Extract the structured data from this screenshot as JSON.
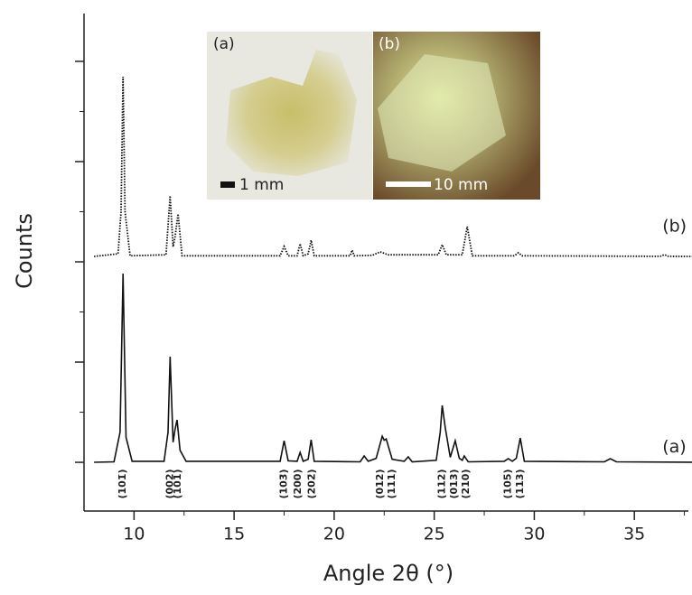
{
  "chart_data": {
    "type": "line",
    "x_label": "Angle 2θ (°)",
    "y_label": "Counts",
    "xlim": [
      7.5,
      37.7
    ],
    "xticks": [
      10,
      15,
      20,
      25,
      30,
      35
    ],
    "xminorticks": [
      12.5,
      17.5,
      22.5,
      27.5,
      32.5,
      37.5
    ],
    "ylim": [
      -486,
      4477
    ],
    "yticks": [
      0,
      1000,
      2000,
      3000,
      4000
    ],
    "yminorticks": [
      500,
      1500,
      2500,
      3500
    ],
    "series": [
      {
        "name": "(a)",
        "color": "#111111",
        "dash": false,
        "x": [
          8,
          9.0,
          9.3,
          9.45,
          9.6,
          9.9,
          11.5,
          11.7,
          11.8,
          11.95,
          12.05,
          12.15,
          12.3,
          12.6,
          17.3,
          17.5,
          17.7,
          18.15,
          18.3,
          18.45,
          18.7,
          18.85,
          19.0,
          21.3,
          21.5,
          21.7,
          22.1,
          22.4,
          22.5,
          22.6,
          22.9,
          23.5,
          23.7,
          23.9,
          25.1,
          25.3,
          25.4,
          25.55,
          25.8,
          26.05,
          26.25,
          26.4,
          26.5,
          26.7,
          28.5,
          28.7,
          28.9,
          29.1,
          29.3,
          29.5,
          33.5,
          33.8,
          34.1,
          38
        ],
        "values": [
          0,
          5,
          300,
          1883,
          250,
          10,
          10,
          300,
          1054,
          200,
          330,
          423,
          120,
          10,
          10,
          216,
          15,
          10,
          99,
          10,
          30,
          225,
          10,
          5,
          63,
          10,
          40,
          261,
          220,
          234,
          30,
          10,
          54,
          5,
          20,
          300,
          568,
          350,
          50,
          216,
          40,
          20,
          63,
          5,
          10,
          36,
          10,
          40,
          243,
          10,
          5,
          36,
          5,
          0
        ],
        "label_x": 36.4,
        "label_y": 150
      },
      {
        "name": "(b)",
        "color": "#111111",
        "dash": true,
        "x": [
          8,
          9.2,
          9.35,
          9.45,
          9.55,
          9.8,
          11.6,
          11.8,
          11.95,
          12.05,
          12.2,
          12.4,
          17.3,
          17.5,
          17.7,
          18.15,
          18.3,
          18.45,
          18.7,
          18.85,
          19.0,
          20.8,
          20.9,
          21.0,
          21.9,
          22.3,
          22.7,
          25.2,
          25.4,
          25.6,
          26.4,
          26.65,
          26.9,
          29.0,
          29.2,
          29.4,
          36.3,
          36.5,
          36.7,
          38
        ],
        "values": [
          2054,
          2080,
          2500,
          3847,
          2500,
          2060,
          2070,
          2658,
          2150,
          2250,
          2477,
          2060,
          2060,
          2153,
          2060,
          2060,
          2180,
          2060,
          2080,
          2216,
          2060,
          2060,
          2117,
          2060,
          2065,
          2099,
          2070,
          2070,
          2171,
          2070,
          2070,
          2351,
          2060,
          2060,
          2090,
          2060,
          2055,
          2072,
          2055,
          2054
        ],
        "label_x": 36.4,
        "label_y": 2350
      }
    ],
    "peak_labels": [
      {
        "text": "(101̄)",
        "x": 9.45
      },
      {
        "text": "(002)",
        "x": 11.8
      },
      {
        "text": "(101)",
        "x": 12.2
      },
      {
        "text": "(103̄)",
        "x": 17.5
      },
      {
        "text": "(200)",
        "x": 18.2
      },
      {
        "text": "(202̄)",
        "x": 18.9
      },
      {
        "text": "(012)",
        "x": 22.3
      },
      {
        "text": "(111)",
        "x": 22.9
      },
      {
        "text": "(112)",
        "x": 25.4
      },
      {
        "text": "(013)",
        "x": 26.0
      },
      {
        "text": "(210)",
        "x": 26.6
      },
      {
        "text": "(105̄)",
        "x": 28.7
      },
      {
        "text": "(113)",
        "x": 29.3
      }
    ],
    "insets": {
      "a_label": "(a)",
      "a_scale": "1 mm",
      "b_label": "(b)",
      "b_scale": "10 mm"
    }
  }
}
